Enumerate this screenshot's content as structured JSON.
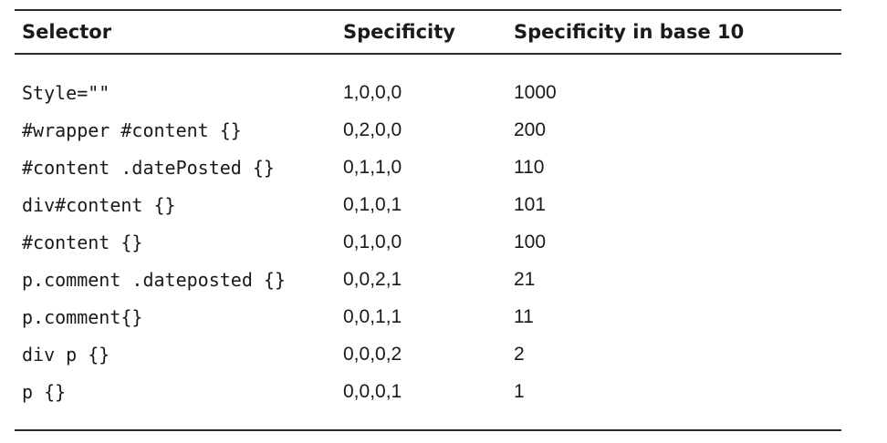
{
  "table": {
    "headers": {
      "selector": "Selector",
      "specificity": "Specificity",
      "base10": "Specificity in base 10"
    },
    "rows": [
      {
        "selector": "Style=\"\"",
        "specificity": "1,0,0,0",
        "base10": "1000"
      },
      {
        "selector": "#wrapper #content {}",
        "specificity": "0,2,0,0",
        "base10": "200"
      },
      {
        "selector": "#content .datePosted {}",
        "specificity": "0,1,1,0",
        "base10": "110"
      },
      {
        "selector": "div#content {}",
        "specificity": "0,1,0,1",
        "base10": "101"
      },
      {
        "selector": "#content {}",
        "specificity": "0,1,0,0",
        "base10": "100"
      },
      {
        "selector": "p.comment .dateposted {}",
        "specificity": "0,0,2,1",
        "base10": "21"
      },
      {
        "selector": "p.comment{}",
        "specificity": "0,0,1,1",
        "base10": "11"
      },
      {
        "selector": "div p {}",
        "specificity": "0,0,0,2",
        "base10": "2"
      },
      {
        "selector": "p {}",
        "specificity": "0,0,0,1",
        "base10": "1"
      }
    ]
  }
}
